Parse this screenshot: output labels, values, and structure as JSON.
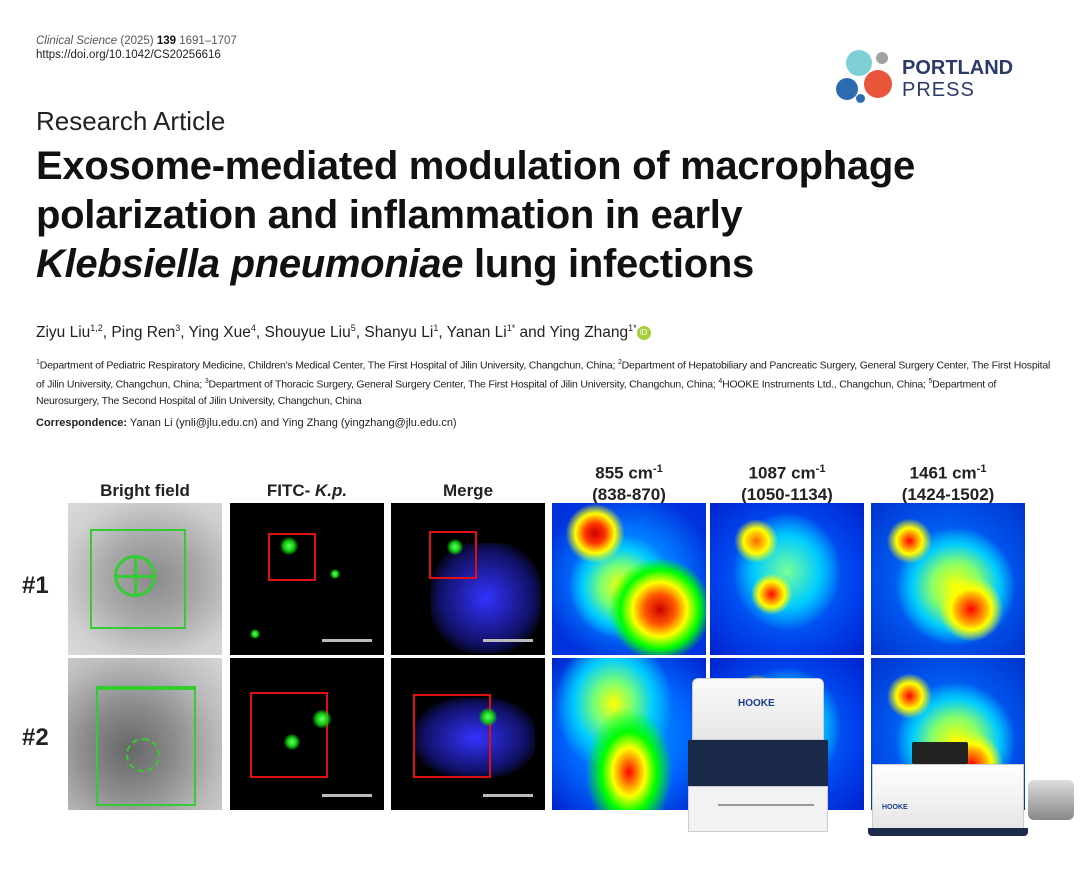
{
  "header": {
    "journal": "Clinical Science",
    "year": "(2025)",
    "volume": "139",
    "pages": "1691–1707",
    "doi": "https://doi.org/10.1042/CS20256616",
    "publisher_logo": {
      "line1": "PORTLAND",
      "line2": "PRESS",
      "colors": [
        "#7fcfd6",
        "#e8553a",
        "#2b6cb0",
        "#a0a3a6"
      ]
    }
  },
  "article": {
    "type": "Research Article",
    "title_line1": "Exosome-mediated modulation of macrophage",
    "title_line2": "polarization and inflammation in early",
    "title_italic": "Klebsiella pneumoniae",
    "title_line3_rest": " lung infections",
    "authors": [
      {
        "name": "Ziyu Liu",
        "sup": "1,2",
        "sep": ", "
      },
      {
        "name": "Ping Ren",
        "sup": "3",
        "sep": ", "
      },
      {
        "name": "Ying Xue",
        "sup": "4",
        "sep": ", "
      },
      {
        "name": "Shouyue Liu",
        "sup": "5",
        "sep": ", "
      },
      {
        "name": "Shanyu Li",
        "sup": "1",
        "sep": ", "
      },
      {
        "name": "Yanan Li",
        "sup": "1*",
        "sep": " and "
      },
      {
        "name": "Ying Zhang",
        "sup": "1*",
        "sep": ""
      }
    ],
    "orcid_icon": "iD",
    "affiliations": [
      {
        "sup": "1",
        "text": "Department of Pediatric Respiratory Medicine, Children's Medical Center, The First Hospital of Jilin University, Changchun, China; "
      },
      {
        "sup": "2",
        "text": "Department of Hepatobiliary and Pancreatic Surgery, General Surgery Center, The First Hospital of Jilin University, Changchun, China; "
      },
      {
        "sup": "3",
        "text": "Department of Thoracic Surgery, General Surgery Center, The First Hospital of Jilin University, Changchun, China; "
      },
      {
        "sup": "4",
        "text": "HOOKE Instruments Ltd., Changchun, China; "
      },
      {
        "sup": "5",
        "text": "Department of Neurosurgery, The Second Hospital of Jilin University, Changchun, China"
      }
    ],
    "correspondence_label": "Correspondence:",
    "correspondence_text": " Yanan Li (ynli@jlu.edu.cn) and Ying Zhang (yingzhang@jlu.edu.cn)"
  },
  "figure": {
    "columns": [
      "Bright field",
      "FITC- ",
      "Merge"
    ],
    "fitc_italic": "K.p.",
    "raman_columns": [
      {
        "line1": "855 cm",
        "line2": "(838-870)"
      },
      {
        "line1": "1087 cm",
        "line2": "(1050-1134)"
      },
      {
        "line1": "1461 cm",
        "line2": "(1424-1502)"
      }
    ],
    "superscript": "-1",
    "rows": [
      "#1",
      "#2"
    ],
    "instrument_brand": "HOOKE"
  }
}
